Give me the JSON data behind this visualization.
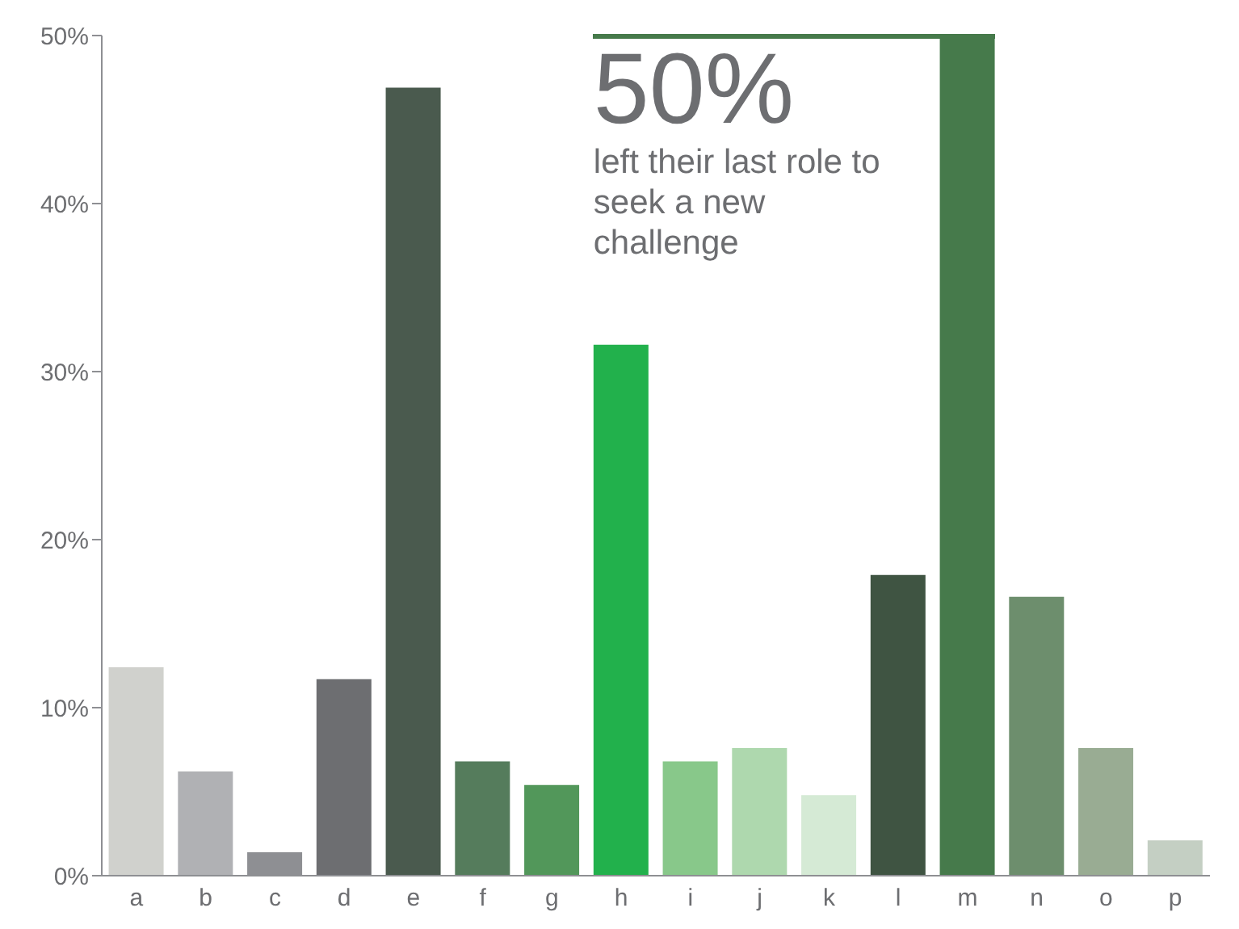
{
  "chart_data": {
    "type": "bar",
    "categories": [
      "a",
      "b",
      "c",
      "d",
      "e",
      "f",
      "g",
      "h",
      "i",
      "j",
      "k",
      "l",
      "m",
      "n",
      "o",
      "p"
    ],
    "values": [
      12.4,
      6.2,
      1.4,
      11.7,
      46.9,
      6.8,
      5.4,
      31.6,
      6.8,
      7.6,
      4.8,
      17.9,
      50,
      16.6,
      7.6,
      2.1
    ],
    "colors": [
      "#d0d1cd",
      "#b0b1b4",
      "#8e8f93",
      "#6d6e71",
      "#4a5a4e",
      "#557c5c",
      "#52975a",
      "#22b14c",
      "#88c88a",
      "#aed8ae",
      "#d5ead5",
      "#3f5442",
      "#467a4b",
      "#6d8e6d",
      "#99ac93",
      "#c4cfc3"
    ],
    "ylim": [
      0,
      50
    ],
    "yticks": [
      {
        "value": 0,
        "label": "0%"
      },
      {
        "value": 10,
        "label": "10%"
      },
      {
        "value": 20,
        "label": "20%"
      },
      {
        "value": 30,
        "label": "30%"
      },
      {
        "value": 40,
        "label": "40%"
      },
      {
        "value": 50,
        "label": "50%"
      }
    ],
    "grid": false,
    "legend": false,
    "annotations": [
      {
        "text": "50%",
        "x": "m",
        "y": 50
      },
      "left their last role to seek a new challenge"
    ]
  }
}
